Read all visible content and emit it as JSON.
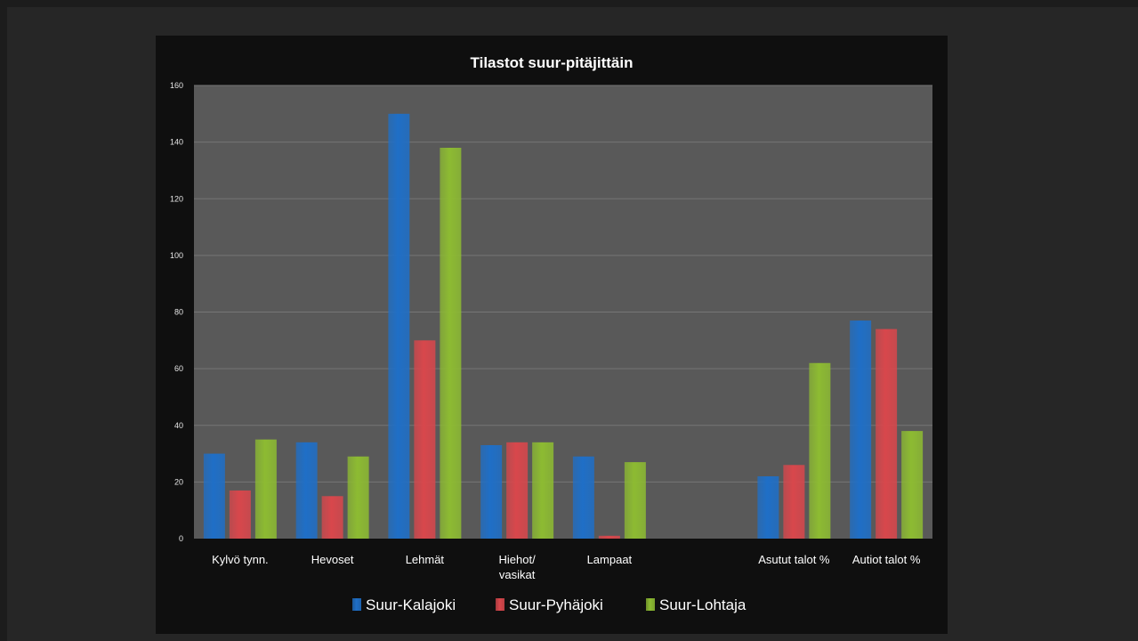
{
  "chart_data": {
    "type": "bar",
    "title": "Tilastot suur-pitäjittäin",
    "categories": [
      "Kylvö tynn.",
      "Hevoset",
      "Lehmät",
      "Hiehot/ vasikat",
      "Lampaat",
      "",
      "Asutut talot %",
      "Autiot talot %"
    ],
    "category_lines": [
      [
        "Kylvö tynn."
      ],
      [
        "Hevoset"
      ],
      [
        "Lehmät"
      ],
      [
        "Hiehot/",
        "vasikat"
      ],
      [
        "Lampaat"
      ],
      [
        ""
      ],
      [
        "Asutut talot %"
      ],
      [
        "Autiot talot %"
      ]
    ],
    "series": [
      {
        "name": "Suur-Kalajoki",
        "color": "#1f6fc7",
        "values": [
          30,
          34,
          150,
          33,
          29,
          null,
          22,
          77
        ]
      },
      {
        "name": "Suur-Pyhäjoki",
        "color": "#d8474c",
        "values": [
          17,
          15,
          70,
          34,
          1,
          null,
          26,
          74
        ]
      },
      {
        "name": "Suur-Lohtaja",
        "color": "#8dbb32",
        "values": [
          35,
          29,
          138,
          34,
          27,
          null,
          62,
          38
        ]
      }
    ],
    "ylim": [
      0,
      160
    ],
    "yticks": [
      0,
      20,
      40,
      60,
      80,
      100,
      120,
      140,
      160
    ],
    "grid": true,
    "legend_position": "bottom",
    "xlabel": "",
    "ylabel": ""
  },
  "colors": {
    "chart_bg": "#0f0f0f",
    "plot_bg": "#595959",
    "gridline": "#767676"
  }
}
